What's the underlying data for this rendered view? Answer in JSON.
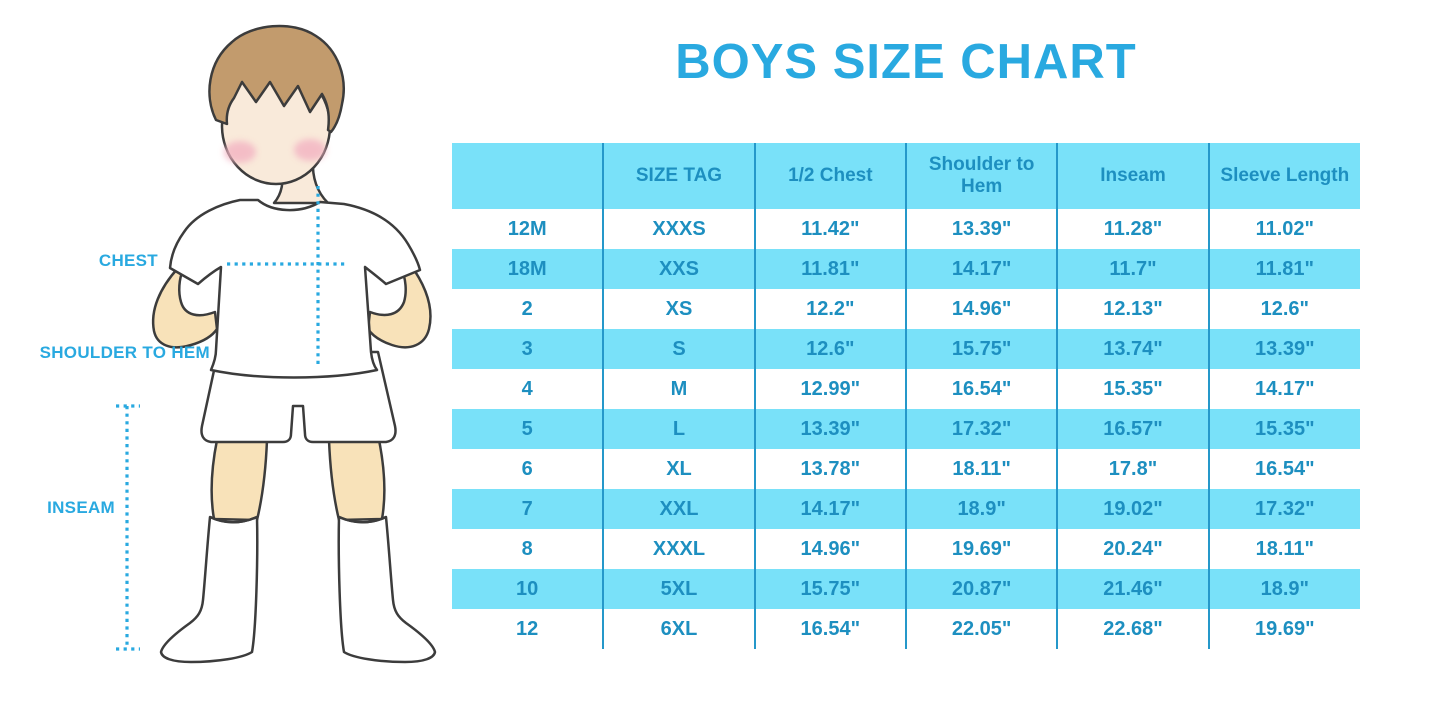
{
  "title": "BOYS SIZE CHART",
  "palette": {
    "accent_blue": "#29A9E0",
    "table_text_blue": "#1D8FC0",
    "stripe_cyan": "#79E1F9",
    "divider_blue": "#2598CA",
    "skin_face": "#F9EADA",
    "skin_limbs": "#F8E2B9",
    "hair_brown": "#C29B6D"
  },
  "figure": {
    "labels": [
      {
        "text": "CHEST"
      },
      {
        "text": "SHOULDER TO HEM"
      },
      {
        "text": "INSEAM"
      }
    ]
  },
  "chart_data": {
    "type": "table",
    "title": "BOYS SIZE CHART",
    "columns": [
      "",
      "SIZE TAG",
      "1/2 Chest",
      "Shoulder to Hem",
      "Inseam",
      "Sleeve Length"
    ],
    "rows": [
      [
        "12M",
        "XXXS",
        "11.42\"",
        "13.39\"",
        "11.28\"",
        "11.02\""
      ],
      [
        "18M",
        "XXS",
        "11.81\"",
        "14.17\"",
        "11.7\"",
        "11.81\""
      ],
      [
        "2",
        "XS",
        "12.2\"",
        "14.96\"",
        "12.13\"",
        "12.6\""
      ],
      [
        "3",
        "S",
        "12.6\"",
        "15.75\"",
        "13.74\"",
        "13.39\""
      ],
      [
        "4",
        "M",
        "12.99\"",
        "16.54\"",
        "15.35\"",
        "14.17\""
      ],
      [
        "5",
        "L",
        "13.39\"",
        "17.32\"",
        "16.57\"",
        "15.35\""
      ],
      [
        "6",
        "XL",
        "13.78\"",
        "18.11\"",
        "17.8\"",
        "16.54\""
      ],
      [
        "7",
        "XXL",
        "14.17\"",
        "18.9\"",
        "19.02\"",
        "17.32\""
      ],
      [
        "8",
        "XXXL",
        "14.96\"",
        "19.69\"",
        "20.24\"",
        "18.11\""
      ],
      [
        "10",
        "5XL",
        "15.75\"",
        "20.87\"",
        "21.46\"",
        "18.9\""
      ],
      [
        "12",
        "6XL",
        "16.54\"",
        "22.05\"",
        "22.68\"",
        "19.69\""
      ]
    ]
  }
}
